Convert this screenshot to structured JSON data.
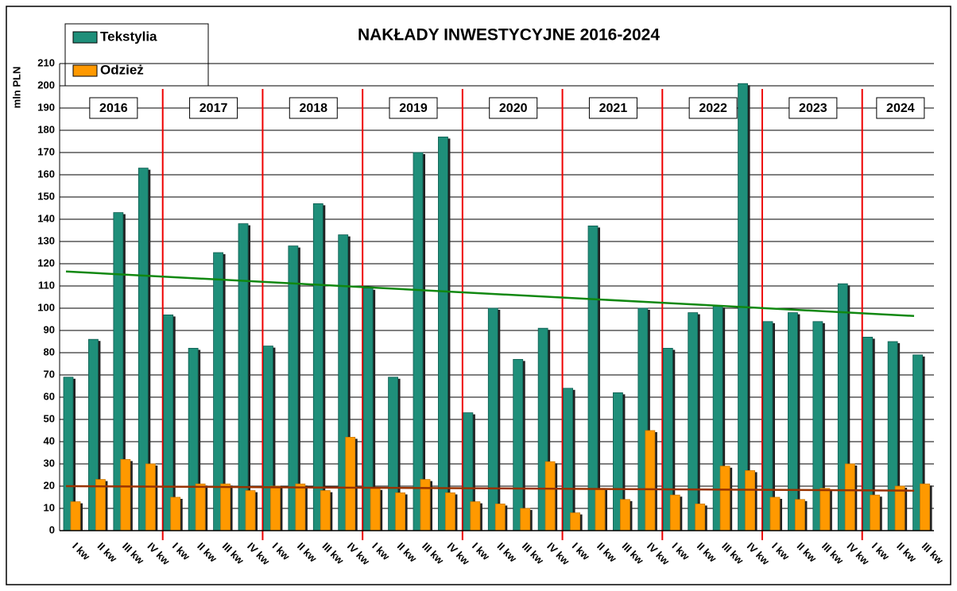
{
  "chart_data": {
    "type": "bar",
    "title": "NAKŁADY INWESTYCYJNE 2016-2024",
    "y_label": "mln PLN",
    "categories": [
      "I kw",
      "II kw",
      "III kw",
      "IV kw",
      "I kw",
      "II kw",
      "III kw",
      "IV kw",
      "I kw",
      "II kw",
      "III kw",
      "IV kw",
      "I kw",
      "II kw",
      "III kw",
      "IV kw",
      "I kw",
      "II kw",
      "III kw",
      "IV kw",
      "I kw",
      "II kw",
      "III kw",
      "IV kw",
      "I kw",
      "II kw",
      "III kw",
      "IV kw",
      "I kw",
      "II kw",
      "III kw",
      "IV kw",
      "I kw",
      "II kw",
      "III kw"
    ],
    "years": [
      "2016",
      "2017",
      "2018",
      "2019",
      "2020",
      "2021",
      "2022",
      "2023",
      "2024"
    ],
    "series": [
      {
        "name": "Tekstylia",
        "color": "#1f8f7a",
        "values": [
          69,
          86,
          143,
          163,
          97,
          82,
          125,
          138,
          83,
          128,
          147,
          133,
          109,
          69,
          170,
          177,
          53,
          100,
          77,
          91,
          64,
          137,
          62,
          100,
          82,
          98,
          101,
          201,
          94,
          98,
          94,
          111,
          87,
          85,
          79
        ],
        "trend": [
          116.5,
          96.5
        ],
        "trend_color": "#118811"
      },
      {
        "name": "Odzież",
        "color": "#ff9900",
        "values": [
          13,
          23,
          32,
          30,
          15,
          21,
          21,
          18,
          20,
          21,
          18,
          42,
          19,
          17,
          23,
          17,
          13,
          12,
          10,
          31,
          8,
          19,
          14,
          45,
          16,
          12,
          29,
          27,
          15,
          14,
          19,
          30,
          16,
          20,
          21
        ],
        "trend": [
          20,
          18
        ],
        "trend_color": "#993300"
      }
    ],
    "ylim": [
      0,
      210
    ],
    "yticks": [
      0,
      10,
      20,
      30,
      40,
      50,
      60,
      70,
      80,
      90,
      100,
      110,
      120,
      130,
      140,
      150,
      160,
      170,
      180,
      190,
      200,
      210
    ],
    "grid": true,
    "separator_color": "#ee0000"
  }
}
